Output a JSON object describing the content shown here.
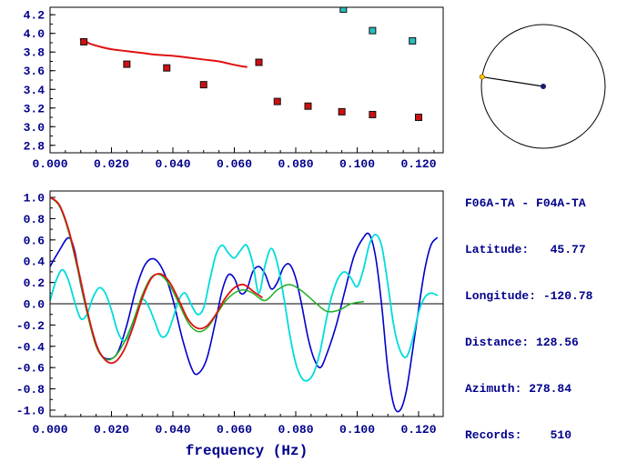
{
  "station_info": {
    "lines": [
      "F06A-TA - F04A-TA",
      "Latitude:   45.77",
      "Longitude: -120.78",
      "Distance: 128.56",
      "Azimuth: 278.84",
      "Records:    510"
    ]
  },
  "compass": {
    "azimuth_deg": 278.84,
    "station_dot_color": "#ffcc00",
    "center_dot_color": "#191970",
    "circle_color": "#000000"
  },
  "colors": {
    "text_navy": "#00008B",
    "axis_black": "#000000",
    "red_line": "#e01010",
    "red_marker": "#cc1111",
    "cyan_marker": "#2bbcbc",
    "blue_line": "#0000cd",
    "cyan_line": "#00dcdc",
    "green_line": "#22b022"
  },
  "chart_data": [
    {
      "name": "dispersion-panel",
      "type": "line",
      "title": "",
      "xlabel": "",
      "ylabel": "",
      "xlim": [
        0,
        0.128
      ],
      "ylim": [
        2.72,
        4.28
      ],
      "xticks": [
        0,
        0.02,
        0.04,
        0.06,
        0.08,
        0.1,
        0.12
      ],
      "xtick_labels": [
        "0.000",
        "0.020",
        "0.040",
        "0.060",
        "0.080",
        "0.100",
        "0.120"
      ],
      "x_minor": 0.005,
      "yticks": [
        4.2,
        4.0,
        3.8,
        3.6,
        3.4,
        3.2,
        3.0,
        2.8
      ],
      "ytick_labels": [
        "4.2",
        "4.0",
        "3.8",
        "3.6",
        "3.4",
        "3.2",
        "3.0",
        "2.8"
      ],
      "y_minor": 0.1,
      "grid": false,
      "zero_line": false,
      "series": [
        {
          "name": "dispersion-curve",
          "type": "line",
          "color": "#e01010",
          "width": 2,
          "points": [
            [
              0.01,
              3.94
            ],
            [
              0.013,
              3.89
            ],
            [
              0.016,
              3.86
            ],
            [
              0.02,
              3.83
            ],
            [
              0.025,
              3.81
            ],
            [
              0.03,
              3.79
            ],
            [
              0.035,
              3.77
            ],
            [
              0.04,
              3.76
            ],
            [
              0.045,
              3.74
            ],
            [
              0.05,
              3.72
            ],
            [
              0.055,
              3.7
            ],
            [
              0.059,
              3.67
            ],
            [
              0.062,
              3.65
            ],
            [
              0.064,
              3.64
            ]
          ]
        },
        {
          "name": "velocity-picks-red",
          "type": "marker",
          "marker": "square",
          "color": "#cc1111",
          "edge": "#111111",
          "size": 7,
          "points": [
            [
              0.011,
              3.91
            ],
            [
              0.025,
              3.67
            ],
            [
              0.038,
              3.63
            ],
            [
              0.05,
              3.45
            ],
            [
              0.068,
              3.69
            ],
            [
              0.074,
              3.27
            ],
            [
              0.084,
              3.22
            ],
            [
              0.095,
              3.16
            ],
            [
              0.105,
              3.13
            ],
            [
              0.12,
              3.1
            ]
          ]
        },
        {
          "name": "velocity-picks-cyan",
          "type": "marker",
          "marker": "square",
          "color": "#2bbcbc",
          "edge": "#111111",
          "size": 7,
          "points": [
            [
              0.0955,
              4.26
            ],
            [
              0.105,
              4.03
            ],
            [
              0.118,
              3.92
            ]
          ]
        }
      ]
    },
    {
      "name": "spectrum-panel",
      "type": "line",
      "title": "",
      "xlabel": "frequency (Hz)",
      "ylabel": "",
      "xlim": [
        0,
        0.128
      ],
      "ylim": [
        -1.06,
        1.06
      ],
      "xticks": [
        0,
        0.02,
        0.04,
        0.06,
        0.08,
        0.1,
        0.12
      ],
      "xtick_labels": [
        "0.000",
        "0.020",
        "0.040",
        "0.060",
        "0.080",
        "0.100",
        "0.120"
      ],
      "x_minor": 0.005,
      "yticks": [
        1.0,
        0.8,
        0.6,
        0.4,
        0.2,
        0.0,
        -0.2,
        -0.4,
        -0.6,
        -0.8,
        -1.0
      ],
      "ytick_labels": [
        "1.0",
        "0.8",
        "0.6",
        "0.4",
        "0.2",
        "0.0",
        "-0.2",
        "-0.4",
        "-0.6",
        "-0.8",
        "-1.0"
      ],
      "y_minor": 0.1,
      "grid": false,
      "zero_line": true,
      "series": [
        {
          "name": "trace-blue",
          "type": "line",
          "color": "#0000cd",
          "width": 1.6,
          "points": [
            [
              0.0,
              0.35
            ],
            [
              0.003,
              0.5
            ],
            [
              0.006,
              0.62
            ],
            [
              0.008,
              0.5
            ],
            [
              0.01,
              0.18
            ],
            [
              0.013,
              -0.18
            ],
            [
              0.016,
              -0.45
            ],
            [
              0.019,
              -0.52
            ],
            [
              0.022,
              -0.46
            ],
            [
              0.025,
              -0.2
            ],
            [
              0.028,
              0.14
            ],
            [
              0.031,
              0.37
            ],
            [
              0.034,
              0.42
            ],
            [
              0.037,
              0.3
            ],
            [
              0.04,
              0.04
            ],
            [
              0.043,
              -0.32
            ],
            [
              0.046,
              -0.6
            ],
            [
              0.048,
              -0.66
            ],
            [
              0.051,
              -0.52
            ],
            [
              0.054,
              -0.15
            ],
            [
              0.056,
              0.12
            ],
            [
              0.058,
              0.27
            ],
            [
              0.06,
              0.24
            ],
            [
              0.062,
              0.1
            ],
            [
              0.064,
              0.13
            ],
            [
              0.066,
              0.3
            ],
            [
              0.068,
              0.35
            ],
            [
              0.07,
              0.28
            ],
            [
              0.072,
              0.14
            ],
            [
              0.074,
              0.2
            ],
            [
              0.076,
              0.34
            ],
            [
              0.078,
              0.37
            ],
            [
              0.08,
              0.24
            ],
            [
              0.082,
              -0.02
            ],
            [
              0.084,
              -0.32
            ],
            [
              0.086,
              -0.52
            ],
            [
              0.088,
              -0.6
            ],
            [
              0.09,
              -0.48
            ],
            [
              0.093,
              -0.22
            ],
            [
              0.096,
              0.12
            ],
            [
              0.099,
              0.45
            ],
            [
              0.102,
              0.62
            ],
            [
              0.104,
              0.65
            ],
            [
              0.106,
              0.44
            ],
            [
              0.108,
              -0.02
            ],
            [
              0.11,
              -0.62
            ],
            [
              0.112,
              -0.96
            ],
            [
              0.114,
              -1.0
            ],
            [
              0.116,
              -0.82
            ],
            [
              0.118,
              -0.45
            ],
            [
              0.12,
              -0.05
            ],
            [
              0.122,
              0.32
            ],
            [
              0.124,
              0.55
            ],
            [
              0.126,
              0.62
            ]
          ]
        },
        {
          "name": "trace-cyan",
          "type": "line",
          "color": "#00dcdc",
          "width": 1.8,
          "points": [
            [
              0.0,
              0.03
            ],
            [
              0.002,
              0.22
            ],
            [
              0.004,
              0.32
            ],
            [
              0.006,
              0.22
            ],
            [
              0.008,
              0.02
            ],
            [
              0.01,
              -0.14
            ],
            [
              0.012,
              -0.1
            ],
            [
              0.014,
              0.06
            ],
            [
              0.016,
              0.15
            ],
            [
              0.018,
              0.1
            ],
            [
              0.02,
              -0.06
            ],
            [
              0.022,
              -0.26
            ],
            [
              0.024,
              -0.35
            ],
            [
              0.026,
              -0.28
            ],
            [
              0.028,
              -0.1
            ],
            [
              0.03,
              0.04
            ],
            [
              0.032,
              -0.02
            ],
            [
              0.034,
              -0.16
            ],
            [
              0.036,
              -0.3
            ],
            [
              0.038,
              -0.29
            ],
            [
              0.04,
              -0.14
            ],
            [
              0.042,
              0.04
            ],
            [
              0.044,
              0.1
            ],
            [
              0.046,
              -0.01
            ],
            [
              0.048,
              -0.1
            ],
            [
              0.05,
              -0.04
            ],
            [
              0.052,
              0.22
            ],
            [
              0.054,
              0.46
            ],
            [
              0.056,
              0.55
            ],
            [
              0.058,
              0.48
            ],
            [
              0.06,
              0.43
            ],
            [
              0.062,
              0.5
            ],
            [
              0.064,
              0.55
            ],
            [
              0.066,
              0.38
            ],
            [
              0.068,
              0.1
            ],
            [
              0.07,
              0.36
            ],
            [
              0.072,
              0.52
            ],
            [
              0.074,
              0.38
            ],
            [
              0.076,
              0.08
            ],
            [
              0.078,
              -0.28
            ],
            [
              0.08,
              -0.56
            ],
            [
              0.082,
              -0.7
            ],
            [
              0.084,
              -0.72
            ],
            [
              0.086,
              -0.64
            ],
            [
              0.088,
              -0.44
            ],
            [
              0.09,
              -0.14
            ],
            [
              0.092,
              0.1
            ],
            [
              0.094,
              0.25
            ],
            [
              0.096,
              0.3
            ],
            [
              0.098,
              0.24
            ],
            [
              0.1,
              0.16
            ],
            [
              0.102,
              0.32
            ],
            [
              0.104,
              0.56
            ],
            [
              0.106,
              0.65
            ],
            [
              0.108,
              0.54
            ],
            [
              0.11,
              0.18
            ],
            [
              0.112,
              -0.22
            ],
            [
              0.114,
              -0.44
            ],
            [
              0.116,
              -0.5
            ],
            [
              0.118,
              -0.34
            ],
            [
              0.12,
              -0.08
            ],
            [
              0.122,
              0.06
            ],
            [
              0.124,
              0.1
            ],
            [
              0.126,
              0.08
            ]
          ]
        },
        {
          "name": "trace-green",
          "type": "line",
          "color": "#22b022",
          "width": 1.5,
          "points": [
            [
              0.0,
              1.0
            ],
            [
              0.003,
              0.92
            ],
            [
              0.006,
              0.68
            ],
            [
              0.009,
              0.32
            ],
            [
              0.012,
              -0.08
            ],
            [
              0.015,
              -0.4
            ],
            [
              0.018,
              -0.52
            ],
            [
              0.021,
              -0.5
            ],
            [
              0.024,
              -0.37
            ],
            [
              0.027,
              -0.17
            ],
            [
              0.03,
              0.08
            ],
            [
              0.033,
              0.25
            ],
            [
              0.036,
              0.27
            ],
            [
              0.039,
              0.17
            ],
            [
              0.042,
              0.0
            ],
            [
              0.045,
              -0.18
            ],
            [
              0.048,
              -0.26
            ],
            [
              0.051,
              -0.23
            ],
            [
              0.054,
              -0.11
            ],
            [
              0.057,
              0.02
            ],
            [
              0.06,
              0.1
            ],
            [
              0.063,
              0.13
            ],
            [
              0.066,
              0.1
            ],
            [
              0.07,
              0.03
            ],
            [
              0.074,
              0.13
            ],
            [
              0.078,
              0.18
            ],
            [
              0.082,
              0.12
            ],
            [
              0.086,
              0.02
            ],
            [
              0.09,
              -0.07
            ],
            [
              0.094,
              -0.06
            ],
            [
              0.098,
              0.0
            ],
            [
              0.102,
              0.02
            ]
          ]
        },
        {
          "name": "trace-red",
          "type": "line",
          "color": "#e01010",
          "width": 1.8,
          "points": [
            [
              0.0,
              1.0
            ],
            [
              0.003,
              0.93
            ],
            [
              0.006,
              0.7
            ],
            [
              0.009,
              0.35
            ],
            [
              0.012,
              -0.05
            ],
            [
              0.015,
              -0.38
            ],
            [
              0.018,
              -0.53
            ],
            [
              0.021,
              -0.55
            ],
            [
              0.024,
              -0.44
            ],
            [
              0.027,
              -0.22
            ],
            [
              0.03,
              0.05
            ],
            [
              0.033,
              0.24
            ],
            [
              0.036,
              0.28
            ],
            [
              0.039,
              0.2
            ],
            [
              0.042,
              0.03
            ],
            [
              0.045,
              -0.15
            ],
            [
              0.048,
              -0.23
            ],
            [
              0.051,
              -0.21
            ],
            [
              0.054,
              -0.1
            ],
            [
              0.057,
              0.05
            ],
            [
              0.06,
              0.15
            ],
            [
              0.063,
              0.18
            ],
            [
              0.066,
              0.12
            ],
            [
              0.069,
              0.06
            ]
          ]
        }
      ]
    }
  ]
}
